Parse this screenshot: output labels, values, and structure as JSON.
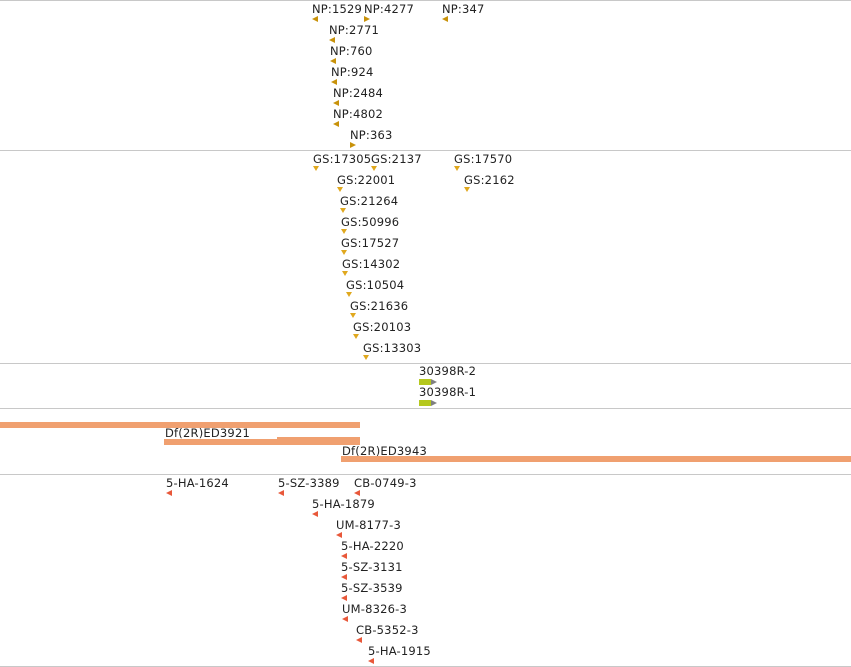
{
  "colors": {
    "np": "#c8920a",
    "gs": "#e0a81e",
    "deficiency": "#f0a070",
    "insertion": "#e8583a",
    "gene": "#b5c81e"
  },
  "tracks": {
    "np_insertions": [
      {
        "label": "NP:1529",
        "strand": "left"
      },
      {
        "label": "NP:4277",
        "strand": "right"
      },
      {
        "label": "NP:347",
        "strand": "left"
      },
      {
        "label": "NP:2771",
        "strand": "left"
      },
      {
        "label": "NP:760",
        "strand": "left"
      },
      {
        "label": "NP:924",
        "strand": "left"
      },
      {
        "label": "NP:2484",
        "strand": "left"
      },
      {
        "label": "NP:4802",
        "strand": "left"
      },
      {
        "label": "NP:363",
        "strand": "right"
      }
    ],
    "gs_insertions": [
      {
        "label": "GS:17305",
        "strand": "left"
      },
      {
        "label": "GS:2137",
        "strand": "left"
      },
      {
        "label": "GS:17570",
        "strand": "left"
      },
      {
        "label": "GS:22001",
        "strand": "left"
      },
      {
        "label": "GS:2162",
        "strand": "left"
      },
      {
        "label": "GS:21264",
        "strand": "left"
      },
      {
        "label": "GS:50996",
        "strand": "left"
      },
      {
        "label": "GS:17527",
        "strand": "left"
      },
      {
        "label": "GS:14302",
        "strand": "left"
      },
      {
        "label": "GS:10504",
        "strand": "left"
      },
      {
        "label": "GS:21636",
        "strand": "left"
      },
      {
        "label": "GS:20103",
        "strand": "left"
      },
      {
        "label": "GS:13303",
        "strand": "left"
      }
    ],
    "transcripts": [
      {
        "label": "30398R-2"
      },
      {
        "label": "30398R-1"
      }
    ],
    "deficiencies": [
      {
        "label": "Df(2R)ED3921"
      },
      {
        "label": "Df(2R)ED3943"
      }
    ],
    "piggybac_insertions": [
      {
        "label": "5-HA-1624",
        "strand": "left"
      },
      {
        "label": "5-SZ-3389",
        "strand": "left"
      },
      {
        "label": "CB-0749-3",
        "strand": "left"
      },
      {
        "label": "5-HA-1879",
        "strand": "left"
      },
      {
        "label": "UM-8177-3",
        "strand": "left"
      },
      {
        "label": "5-HA-2220",
        "strand": "left"
      },
      {
        "label": "5-SZ-3131",
        "strand": "left"
      },
      {
        "label": "5-SZ-3539",
        "strand": "left"
      },
      {
        "label": "UM-8326-3",
        "strand": "left"
      },
      {
        "label": "CB-5352-3",
        "strand": "left"
      },
      {
        "label": "5-HA-1915",
        "strand": "left"
      }
    ]
  }
}
